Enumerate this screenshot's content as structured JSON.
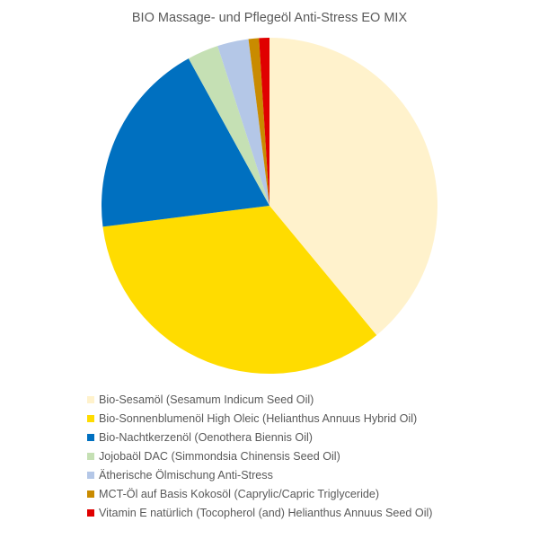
{
  "chart_data": {
    "type": "pie",
    "title": "BIO Massage- und Pflegeöl Anti-Stress EO MIX",
    "categories": [
      "Bio-Sesamöl (Sesamum Indicum Seed Oil)",
      "Bio-Sonnenblumenöl High Oleic (Helianthus Annuus Hybrid Oil)",
      "Bio-Nachtkerzenöl (Oenothera Biennis Oil)",
      "Jojobaöl DAC (Simmondsia Chinensis Seed Oil)",
      "Ätherische Ölmischung Anti-Stress",
      "MCT-Öl auf Basis Kokosöl (Caprylic/Capric Triglyceride)",
      "Vitamin E natürlich (Tocopherol (and) Helianthus Annuus Seed Oil)"
    ],
    "values": [
      39,
      34,
      19,
      3,
      3,
      1,
      1
    ],
    "colors": [
      "#FFF2CC",
      "#FFD966",
      "#0070C0",
      "#C5E0B4",
      "#B4C7E7",
      "#C98B00",
      "#E00000"
    ],
    "start_angle_deg": 0,
    "direction": "clockwise",
    "legend_position": "bottom-left",
    "data_labels": false
  },
  "legend": {
    "items": [
      {
        "label": "Bio-Sesamöl (Sesamum Indicum Seed Oil)",
        "color": "#FFF2CC"
      },
      {
        "label": "Bio-Sonnenblumenöl High Oleic (Helianthus Annuus Hybrid Oil)",
        "color": "#FFDC00"
      },
      {
        "label": "Bio-Nachtkerzenöl (Oenothera Biennis Oil)",
        "color": "#0070C0"
      },
      {
        "label": "Jojobaöl DAC (Simmondsia Chinensis Seed Oil)",
        "color": "#C5E0B4"
      },
      {
        "label": "Ätherische Ölmischung Anti-Stress",
        "color": "#B4C7E7"
      },
      {
        "label": "MCT-Öl auf Basis Kokosöl (Caprylic/Capric Triglyceride)",
        "color": "#C98B00"
      },
      {
        "label": "Vitamin E natürlich (Tocopherol (and) Helianthus Annuus Seed Oil)",
        "color": "#E00000"
      }
    ]
  }
}
